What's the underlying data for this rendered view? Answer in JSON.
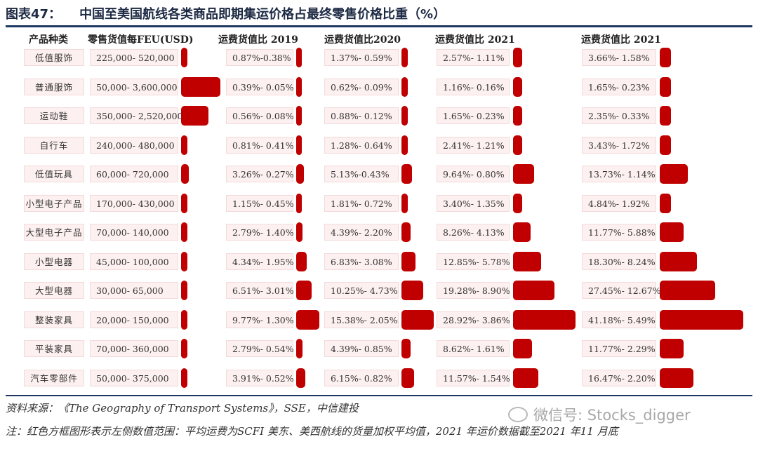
{
  "title": {
    "fig": "图表47：",
    "text": "中国至美国航线各类商品即期集运价格占最终零售价格比重（%）"
  },
  "chart_data": {
    "type": "table",
    "headers": [
      "产品种类",
      "零售货值每FEU(USD)",
      "运费货值比 2019",
      "运费货值比2020",
      "运费货值比 2021",
      "运费货值比 2021"
    ],
    "rows": [
      {
        "name": "低值服饰",
        "value": "225,000- 520,000",
        "r2019": "0.87%-0.38%",
        "r2020": "1.37%- 0.59%",
        "r2021a": "2.57%- 1.11%",
        "r2021b": "3.66%- 1.58%",
        "bars": [
          520000,
          0.87,
          1.37,
          2.57,
          3.66
        ]
      },
      {
        "name": "普通服饰",
        "value": "50,000- 3,600,000",
        "r2019": "0.39%- 0.05%",
        "r2020": "0.62%- 0.09%",
        "r2021a": "1.16%- 0.16%",
        "r2021b": "1.65%- 0.23%",
        "bars": [
          3600000,
          0.39,
          0.62,
          1.16,
          1.65
        ]
      },
      {
        "name": "运动鞋",
        "value": "350,000- 2,520,000",
        "r2019": "0.56%- 0.08%",
        "r2020": "0.88%- 0.12%",
        "r2021a": "1.65%- 0.23%",
        "r2021b": "2.35%- 0.33%",
        "bars": [
          2520000,
          0.56,
          0.88,
          1.65,
          2.35
        ]
      },
      {
        "name": "自行车",
        "value": "240,000- 480,000",
        "r2019": "0.81%- 0.41%",
        "r2020": "1.28%- 0.64%",
        "r2021a": "2.41%- 1.21%",
        "r2021b": "3.43%- 1.72%",
        "bars": [
          480000,
          0.81,
          1.28,
          2.41,
          3.43
        ]
      },
      {
        "name": "低值玩具",
        "value": "60,000- 720,000",
        "r2019": "3.26%- 0.27%",
        "r2020": "5.13%-0.43%",
        "r2021a": "9.64%- 0.80%",
        "r2021b": "13.73%- 1.14%",
        "bars": [
          720000,
          3.26,
          5.13,
          9.64,
          13.73
        ]
      },
      {
        "name": "小型电子产品",
        "value": "170,000- 430,000",
        "r2019": "1.15%- 0.45%",
        "r2020": "1.81%- 0.72%",
        "r2021a": "3.40%- 1.35%",
        "r2021b": "4.84%- 1.92%",
        "bars": [
          430000,
          1.15,
          1.81,
          3.4,
          4.84
        ]
      },
      {
        "name": "大型电子产品",
        "value": "70,000- 140,000",
        "r2019": "2.79%- 1.40%",
        "r2020": "4.39%- 2.20%",
        "r2021a": "8.26%- 4.13%",
        "r2021b": "11.77%- 5.88%",
        "bars": [
          140000,
          2.79,
          4.39,
          8.26,
          11.77
        ]
      },
      {
        "name": "小型电器",
        "value": "45,000- 100,000",
        "r2019": "4.34%- 1.95%",
        "r2020": "6.83%- 3.08%",
        "r2021a": "12.85%- 5.78%",
        "r2021b": "18.30%- 8.24%",
        "bars": [
          100000,
          4.34,
          6.83,
          12.85,
          18.3
        ]
      },
      {
        "name": "大型电器",
        "value": "30,000- 65,000",
        "r2019": "6.51%- 3.01%",
        "r2020": "10.25%- 4.73%",
        "r2021a": "19.28%- 8.90%",
        "r2021b": "27.45%- 12.67%",
        "bars": [
          65000,
          6.51,
          10.25,
          19.28,
          27.45
        ]
      },
      {
        "name": "整装家具",
        "value": "20,000- 150,000",
        "r2019": "9.77%- 1.30%",
        "r2020": "15.38%- 2.05%",
        "r2021a": "28.92%- 3.86%",
        "r2021b": "41.18%- 5.49%",
        "bars": [
          150000,
          9.77,
          15.38,
          28.92,
          41.18
        ]
      },
      {
        "name": "平装家具",
        "value": "70,000- 360,000",
        "r2019": "2.79%- 0.54%",
        "r2020": "4.39%- 0.85%",
        "r2021a": "8.62%- 1.61%",
        "r2021b": "11.77%- 2.29%",
        "bars": [
          360000,
          2.79,
          4.39,
          8.62,
          11.77
        ]
      },
      {
        "name": "汽车零部件",
        "value": "50,000- 375,000",
        "r2019": "3.91%- 0.52%",
        "r2020": "6.15%- 0.82%",
        "r2021a": "11.57%- 1.54%",
        "r2021b": "16.47%- 2.20%",
        "bars": [
          375000,
          3.91,
          6.15,
          11.57,
          16.47
        ]
      }
    ],
    "bar_color": "#c00000"
  },
  "footer": {
    "source": "资料来源：《The Geography of Transport Systems》，SSE，中信建投",
    "note": "注：红色方框图形表示左侧数值范围：平均运费为SCFI 美东、美西航线的货量加权平均值，2021 年运价数据截至2021 年11 月底"
  },
  "watermark": {
    "icon": "wechat-icon",
    "text": "微信号: Stocks_digger"
  }
}
